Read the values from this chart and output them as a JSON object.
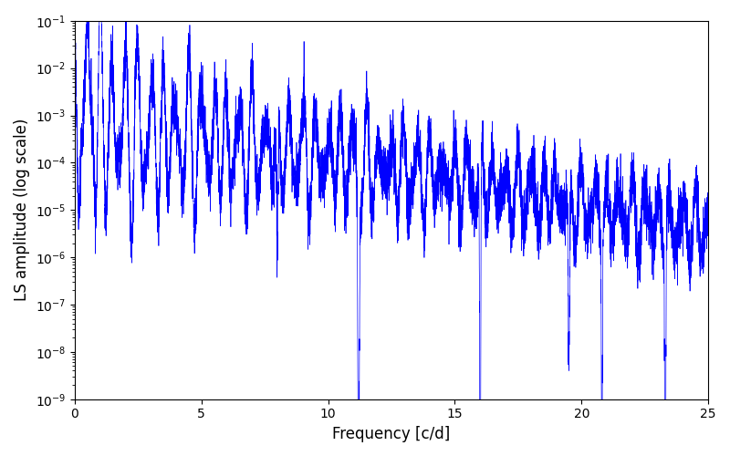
{
  "line_color": "#0000ff",
  "xlabel": "Frequency [c/d]",
  "ylabel": "LS amplitude (log scale)",
  "xlim": [
    0,
    25
  ],
  "ylim": [
    1e-09,
    0.1
  ],
  "freq_max": 25.0,
  "num_points": 8000,
  "line_width": 0.5,
  "background_color": "#ffffff",
  "figsize": [
    8.0,
    5.0
  ],
  "dpi": 100,
  "seed": 42
}
